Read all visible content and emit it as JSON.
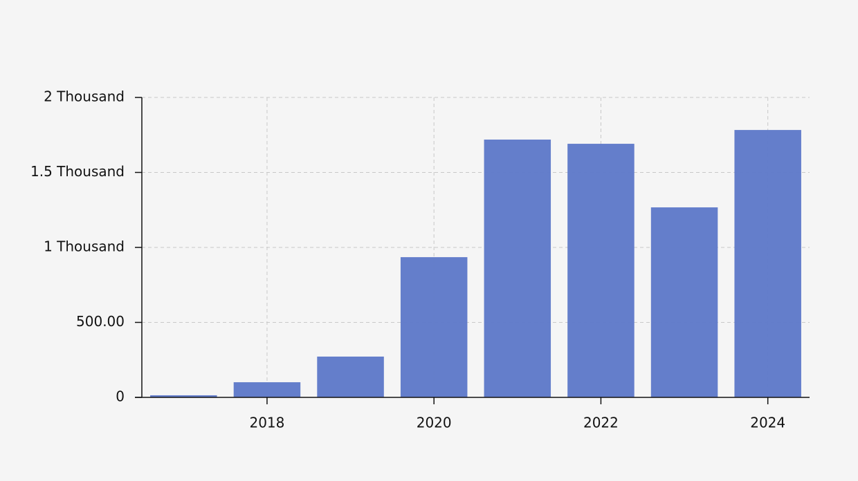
{
  "chart_data": {
    "type": "bar",
    "x": [
      2017,
      2018,
      2019,
      2020,
      2021,
      2022,
      2023,
      2024
    ],
    "values": [
      14,
      101,
      272,
      935,
      1719,
      1691,
      1267,
      1783
    ],
    "color": "#5f7ac9",
    "xlim": [
      2016.5,
      2024.5
    ],
    "xticks": [
      2018,
      2020,
      2022,
      2024
    ],
    "ylim": [
      0,
      2000
    ],
    "yticks": [
      0,
      {
        "value": 500,
        "label": "500.00"
      },
      {
        "value": 1000,
        "label": "1 Thousand"
      },
      {
        "value": 1500,
        "label": "1.5 Thousand"
      },
      {
        "value": 2000,
        "label": "2 Thousand"
      }
    ],
    "grid": true
  }
}
